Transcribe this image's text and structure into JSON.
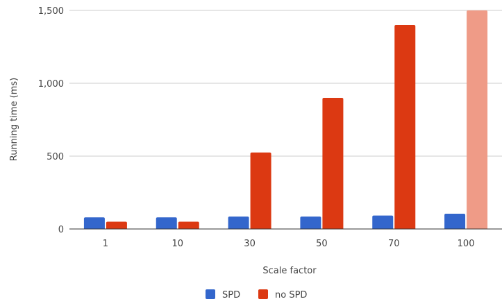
{
  "chart_data": {
    "type": "bar",
    "title": "",
    "xlabel": "Scale factor",
    "ylabel": "Running time (ms)",
    "categories": [
      "1",
      "10",
      "30",
      "50",
      "70",
      "100"
    ],
    "ylim": [
      0,
      1500
    ],
    "yticks": [
      0,
      500,
      1000,
      1500
    ],
    "ytick_labels": [
      "0",
      "500",
      "1,000",
      "1,500"
    ],
    "grid": true,
    "legend_position": "bottom",
    "series": [
      {
        "name": "SPD",
        "color": "#3366cc",
        "values": [
          80,
          80,
          85,
          85,
          92,
          105
        ]
      },
      {
        "name": "no SPD",
        "color": "#dc3912",
        "values": [
          50,
          50,
          525,
          900,
          1400,
          1500
        ]
      }
    ],
    "highlight": {
      "series": 1,
      "index": 5,
      "color": "#ef9b87"
    }
  }
}
